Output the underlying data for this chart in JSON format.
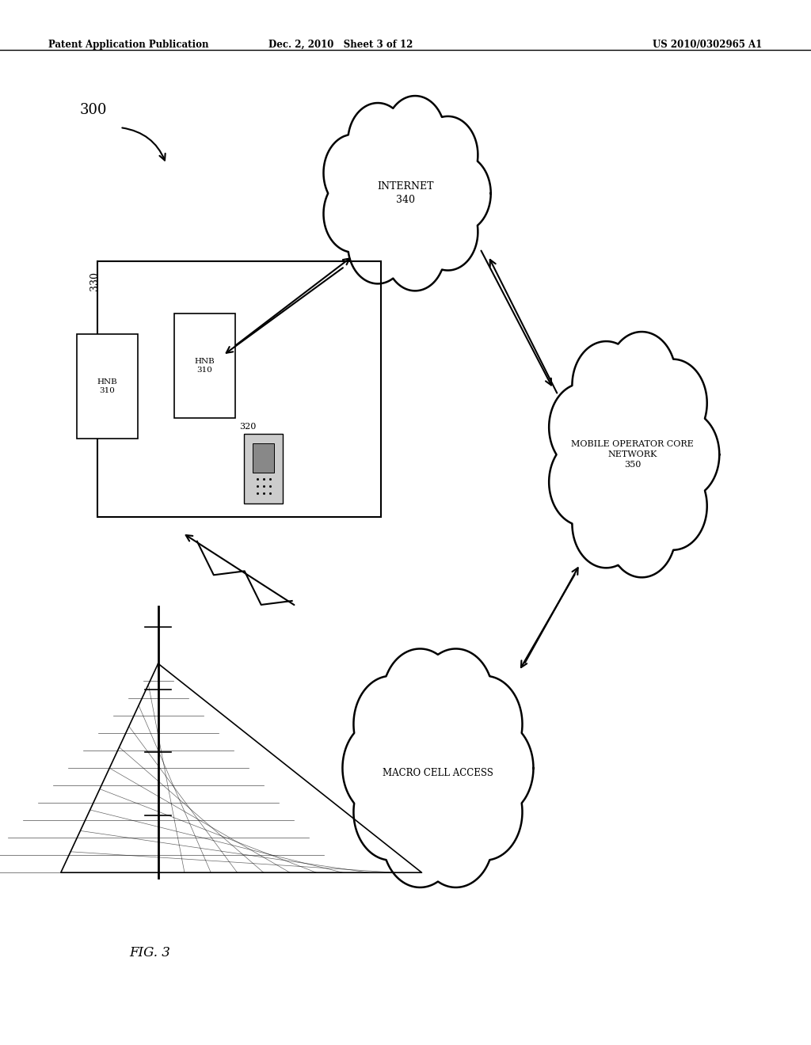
{
  "bg_color": "#ffffff",
  "line_color": "#000000",
  "header_left": "Patent Application Publication",
  "header_mid": "Dec. 2, 2010   Sheet 3 of 12",
  "header_right": "US 2010/0302965 A1",
  "fig_label": "FIG. 3",
  "diagram_label": "300"
}
